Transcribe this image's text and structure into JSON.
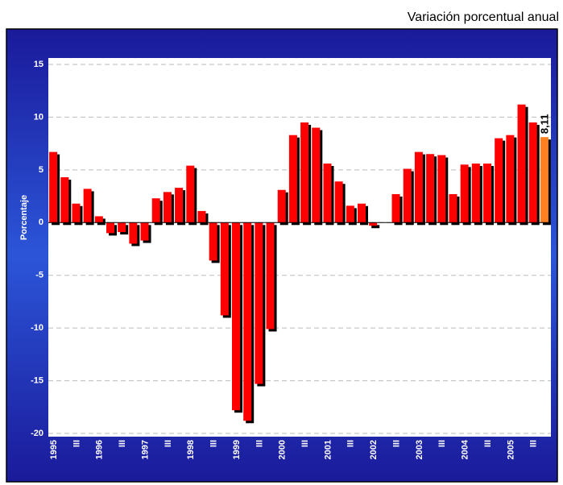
{
  "chart_data": {
    "type": "bar",
    "title": "Variación porcentual anual",
    "y_label": "Porcentaje",
    "categories": [
      "1995",
      null,
      "III",
      null,
      "1996",
      null,
      "III",
      null,
      "1997",
      null,
      "III",
      null,
      "1998",
      null,
      "III",
      null,
      "1999",
      null,
      "III",
      null,
      "2000",
      null,
      "III",
      null,
      "2001",
      null,
      "III",
      null,
      "2002",
      null,
      "III",
      null,
      "2003",
      null,
      "III",
      null,
      "2004",
      null,
      "III",
      null,
      "2005",
      null,
      "III",
      null
    ],
    "values": [
      6.7,
      4.3,
      1.8,
      3.2,
      0.6,
      -1.0,
      -0.9,
      -2.0,
      -1.7,
      2.3,
      2.9,
      3.3,
      5.4,
      1.1,
      -3.6,
      -8.8,
      -17.8,
      -18.8,
      -15.3,
      -10.1,
      3.1,
      8.3,
      9.5,
      9.0,
      5.6,
      3.9,
      1.6,
      1.8,
      -0.3,
      0,
      2.7,
      5.1,
      6.7,
      6.5,
      6.4,
      2.7,
      5.5,
      5.6,
      5.6,
      8.0,
      8.3,
      11.2,
      9.5,
      8.11
    ],
    "value_labels": [
      null,
      null,
      null,
      null,
      null,
      null,
      null,
      null,
      null,
      null,
      null,
      null,
      null,
      null,
      null,
      null,
      null,
      null,
      null,
      null,
      null,
      null,
      null,
      null,
      null,
      null,
      null,
      null,
      null,
      null,
      null,
      null,
      null,
      null,
      null,
      null,
      null,
      null,
      null,
      null,
      null,
      null,
      null,
      "8,11"
    ],
    "colors": [
      "#ff0000",
      "#ff0000",
      "#ff0000",
      "#ff0000",
      "#ff0000",
      "#ff0000",
      "#ff0000",
      "#ff0000",
      "#ff0000",
      "#ff0000",
      "#ff0000",
      "#ff0000",
      "#ff0000",
      "#ff0000",
      "#ff0000",
      "#ff0000",
      "#ff0000",
      "#ff0000",
      "#ff0000",
      "#ff0000",
      "#ff0000",
      "#ff0000",
      "#ff0000",
      "#ff0000",
      "#ff0000",
      "#ff0000",
      "#ff0000",
      "#ff0000",
      "#ff0000",
      "#ff0000",
      "#ff0000",
      "#ff0000",
      "#ff0000",
      "#ff0000",
      "#ff0000",
      "#ff0000",
      "#ff0000",
      "#ff0000",
      "#ff0000",
      "#ff0000",
      "#ff0000",
      "#ff0000",
      "#ff0000",
      "#ff8020"
    ],
    "ylim": [
      -20,
      15
    ],
    "yticks": [
      -20,
      -15,
      -10,
      -5,
      0,
      5,
      10,
      15
    ],
    "grid": true
  }
}
